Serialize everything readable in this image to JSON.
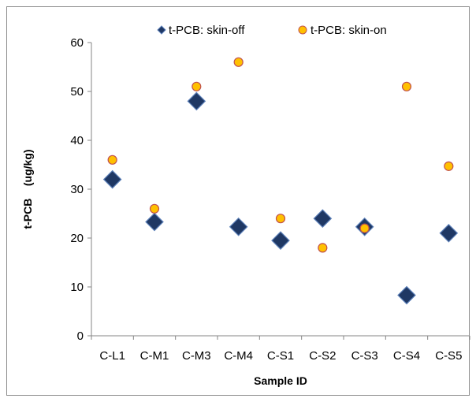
{
  "chart_data": {
    "type": "scatter",
    "title": "",
    "xlabel": "Sample ID",
    "ylabel": "t-PCB    (ug/kg)",
    "categories": [
      "C-L1",
      "C-M1",
      "C-M3",
      "C-M4",
      "C-S1",
      "C-S2",
      "C-S3",
      "C-S4",
      "C-S5"
    ],
    "ylim": [
      0,
      60
    ],
    "yticks": [
      0,
      10,
      20,
      30,
      40,
      50,
      60
    ],
    "grid": false,
    "legend_position": "top",
    "series": [
      {
        "name": "t-PCB: skin-off",
        "marker": "diamond",
        "color": "#1f3864",
        "edge_color": "#5b7fb8",
        "values": [
          32,
          23.3,
          48,
          22.3,
          19.5,
          24,
          22.3,
          8.3,
          21
        ]
      },
      {
        "name": "t-PCB: skin-on",
        "marker": "circle",
        "color": "#ffc000",
        "edge_color": "#c0504d",
        "values": [
          36,
          26,
          51,
          56,
          24,
          18,
          22,
          51,
          34.7
        ]
      }
    ]
  }
}
